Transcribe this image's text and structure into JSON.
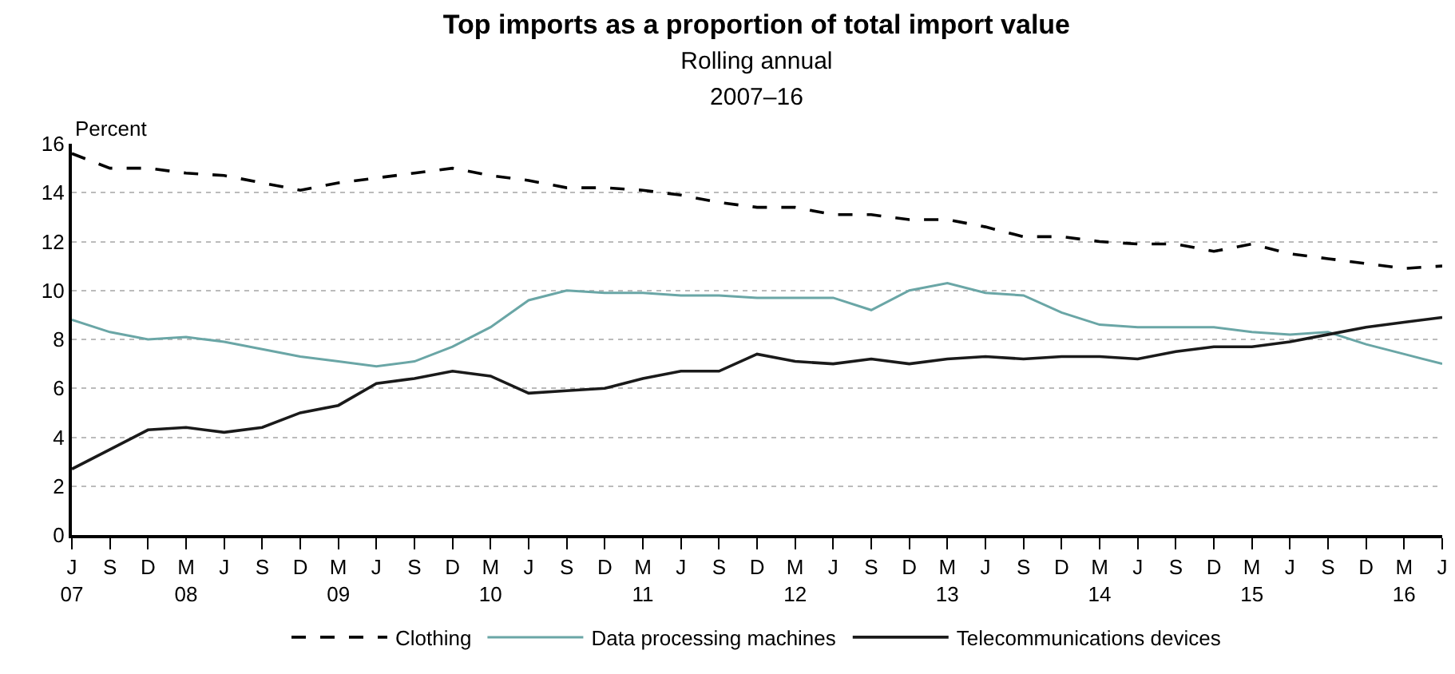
{
  "chart_data": {
    "type": "line",
    "title": "Top imports as a proportion of total import value",
    "subtitle": "Rolling annual\n2007–16",
    "ylabel": "Percent",
    "categories": [
      "J\n07",
      "S",
      "D",
      "M\n08",
      "J",
      "S",
      "D",
      "M\n09",
      "J",
      "S",
      "D",
      "M\n10",
      "J",
      "S",
      "D",
      "M\n11",
      "J",
      "S",
      "D",
      "M\n12",
      "J",
      "S",
      "D",
      "M\n13",
      "J",
      "S",
      "D",
      "M\n14",
      "J",
      "S",
      "D",
      "M\n15",
      "J",
      "S",
      "D",
      "M\n16",
      "J"
    ],
    "series": [
      {
        "name": "Clothing",
        "color": "#000000",
        "line_style": "dashed",
        "values": [
          15.6,
          15.0,
          15.0,
          14.8,
          14.7,
          14.4,
          14.1,
          14.4,
          14.6,
          14.8,
          15.0,
          14.7,
          14.5,
          14.2,
          14.2,
          14.1,
          13.9,
          13.6,
          13.4,
          13.4,
          13.1,
          13.1,
          12.9,
          12.9,
          12.6,
          12.2,
          12.2,
          12.0,
          11.9,
          11.9,
          11.6,
          11.9,
          11.5,
          11.3,
          11.1,
          10.9,
          11.0
        ]
      },
      {
        "name": "Data processing machines",
        "color": "#6aa6a6",
        "line_style": "solid",
        "values": [
          8.8,
          8.3,
          8.0,
          8.1,
          7.9,
          7.6,
          7.3,
          7.1,
          6.9,
          7.1,
          7.7,
          8.5,
          9.6,
          10.0,
          9.9,
          9.9,
          9.8,
          9.8,
          9.7,
          9.7,
          9.7,
          9.2,
          10.0,
          10.3,
          9.9,
          9.8,
          9.1,
          8.6,
          8.5,
          8.5,
          8.5,
          8.3,
          8.2,
          8.3,
          7.8,
          7.4,
          7.0
        ]
      },
      {
        "name": "Telecommunications devices",
        "color": "#1a1a1a",
        "line_style": "solid",
        "values": [
          2.7,
          3.5,
          4.3,
          4.4,
          4.2,
          4.4,
          5.0,
          5.3,
          6.2,
          6.4,
          6.7,
          6.5,
          5.8,
          5.9,
          6.0,
          6.4,
          6.7,
          6.7,
          7.4,
          7.1,
          7.0,
          7.2,
          7.0,
          7.2,
          7.3,
          7.2,
          7.3,
          7.3,
          7.2,
          7.5,
          7.7,
          7.7,
          7.9,
          8.2,
          8.5,
          8.7,
          8.9
        ]
      }
    ],
    "ylim": [
      0,
      16
    ],
    "yticks": [
      0,
      2,
      4,
      6,
      8,
      10,
      12,
      14,
      16
    ],
    "grid": "y",
    "legend": "bottom",
    "marker": "none"
  }
}
